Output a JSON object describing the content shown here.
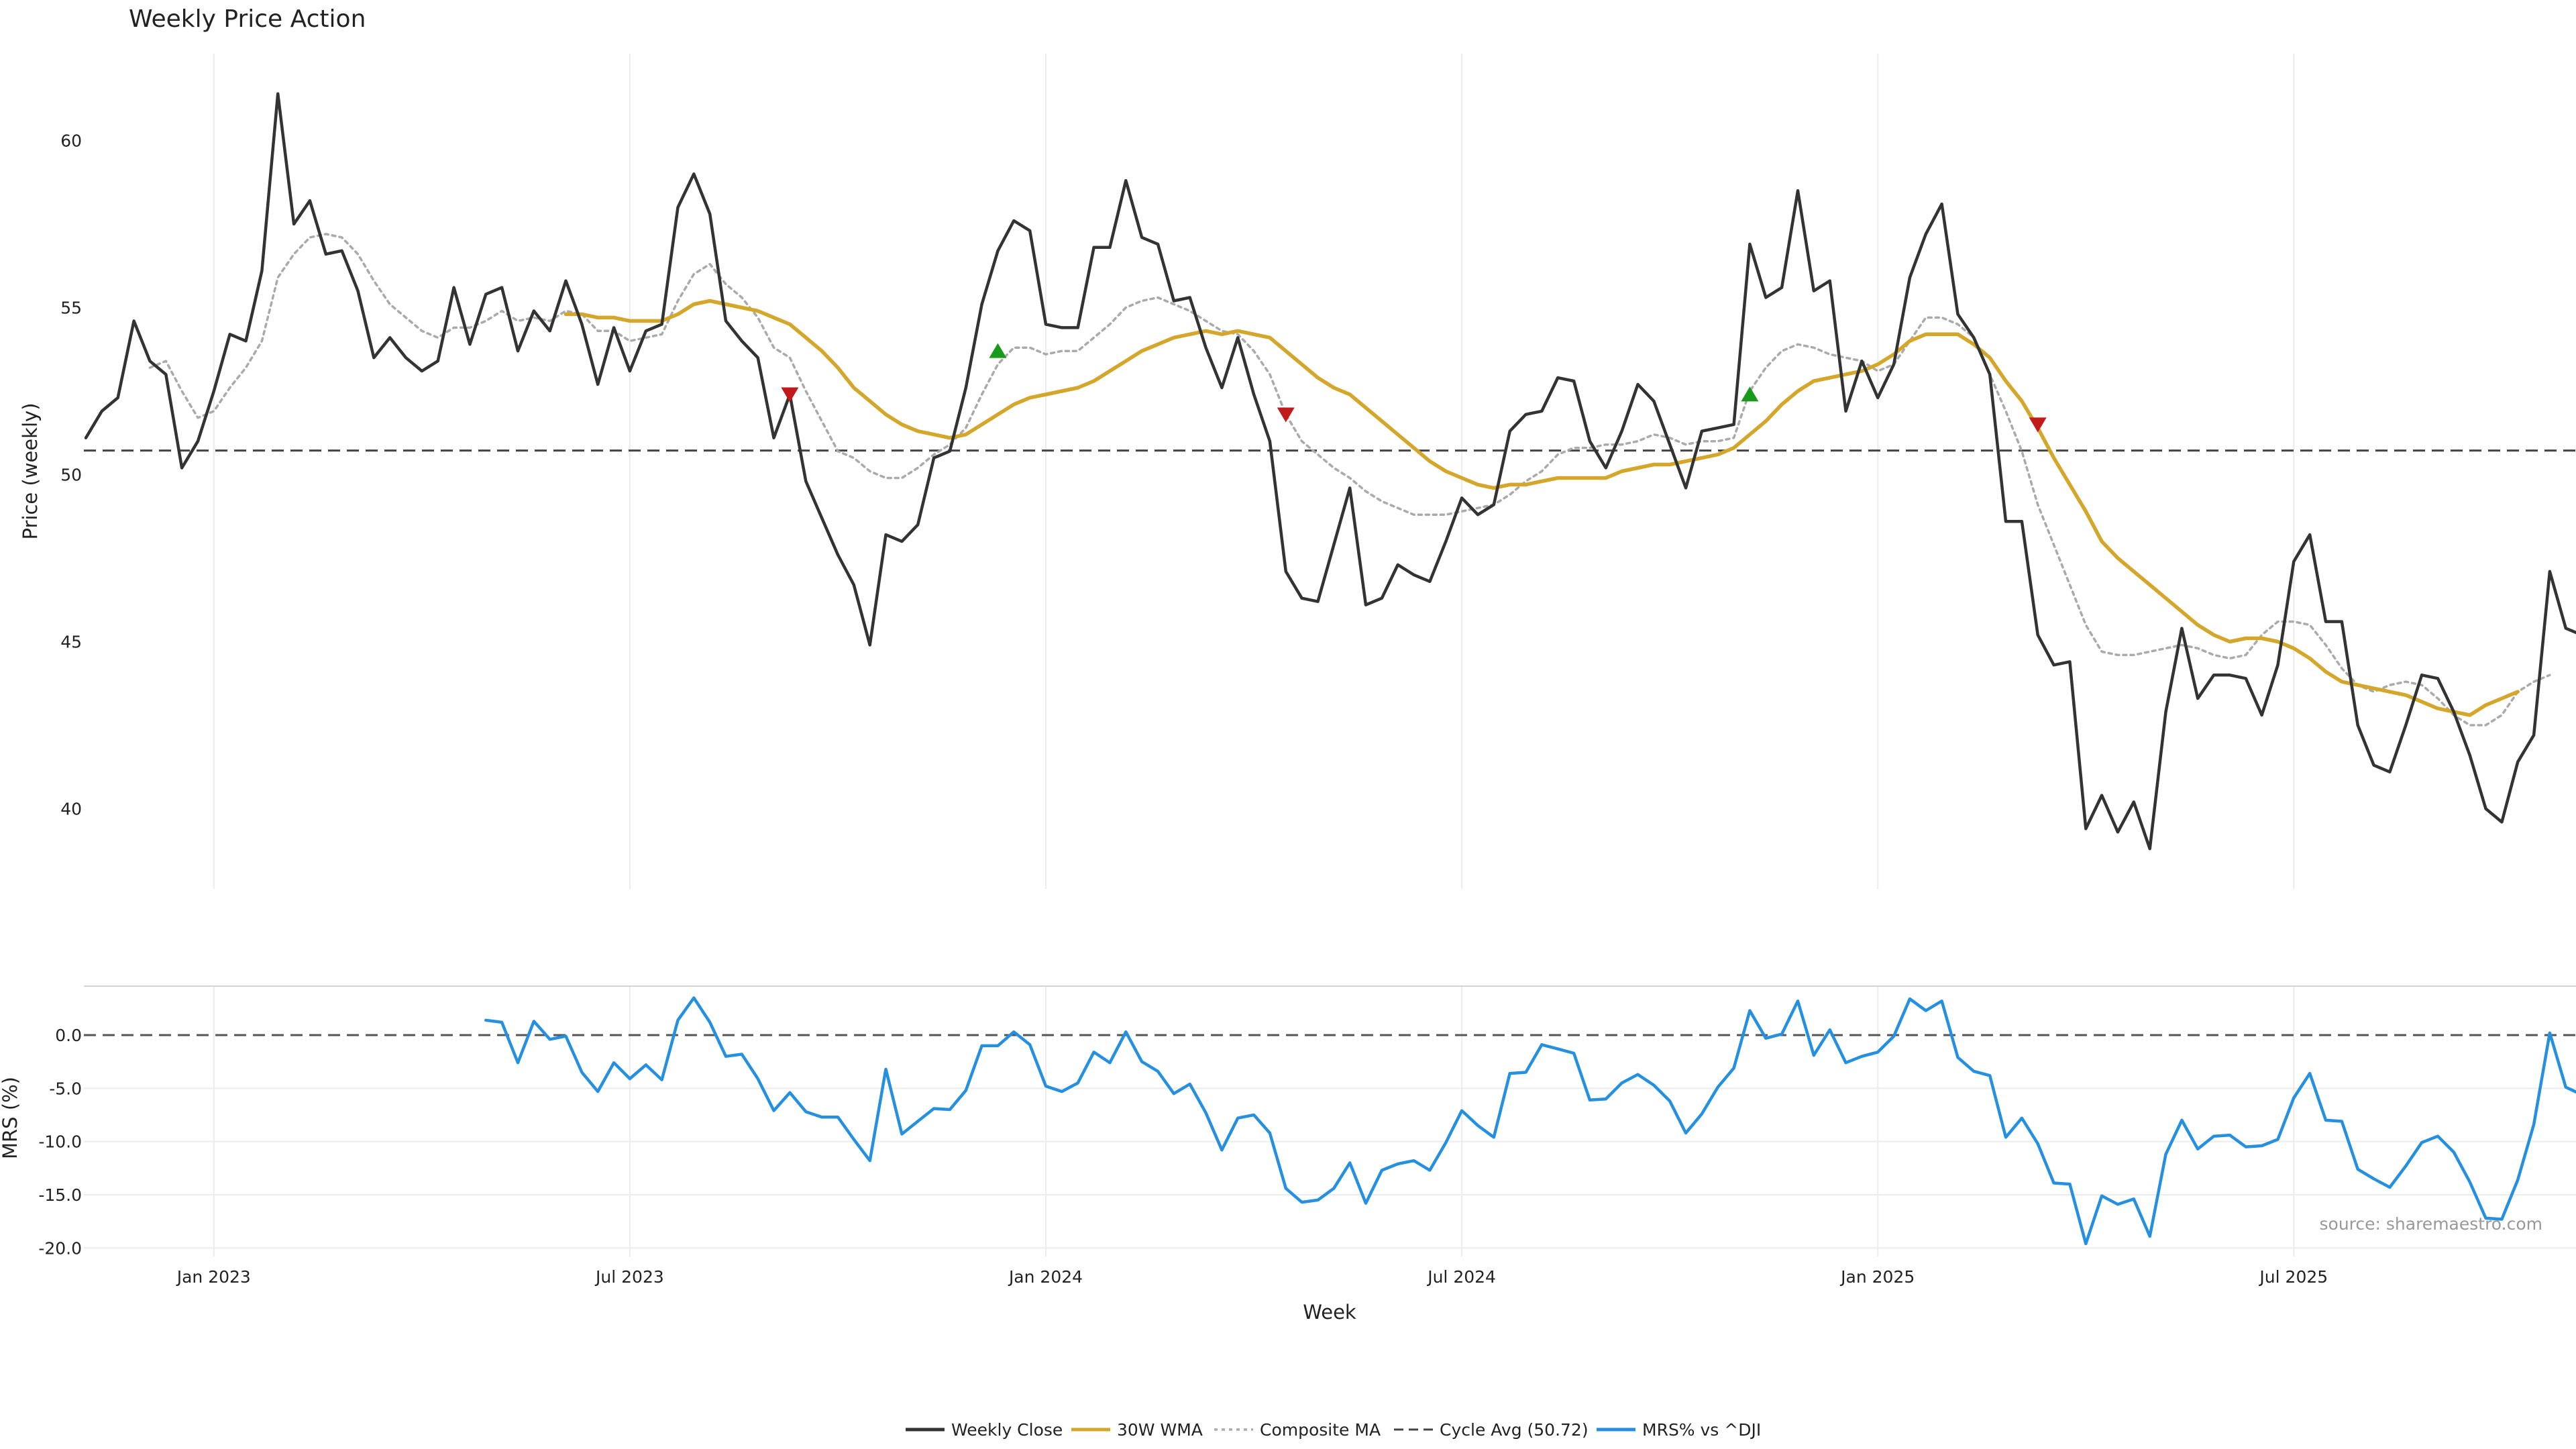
{
  "chart_data": {
    "type": "line",
    "title": "Weekly Price Action",
    "price_panel": {
      "ylabel": "Price (weekly)",
      "ylim": [
        37.6,
        62.6
      ],
      "yticks": [
        40,
        45,
        50,
        55,
        60
      ],
      "cycle_avg": 50.72,
      "series": [
        {
          "name": "Weekly Close",
          "color": "#333333",
          "style": "solid",
          "values": [
            51.1,
            51.9,
            52.3,
            54.6,
            53.4,
            53.0,
            50.2,
            51.0,
            52.5,
            54.2,
            54.0,
            56.1,
            61.4,
            57.5,
            58.2,
            56.6,
            56.7,
            55.5,
            53.5,
            54.1,
            53.5,
            53.1,
            53.4,
            55.6,
            53.9,
            55.4,
            55.6,
            53.7,
            54.9,
            54.3,
            55.8,
            54.5,
            52.7,
            54.4,
            53.1,
            54.3,
            54.5,
            58.0,
            59.0,
            57.8,
            54.6,
            54.0,
            53.5,
            51.1,
            52.4,
            49.8,
            48.7,
            47.6,
            46.7,
            44.9,
            48.2,
            48.0,
            48.5,
            50.5,
            50.7,
            52.6,
            55.1,
            56.7,
            57.6,
            57.3,
            54.5,
            54.4,
            54.4,
            56.8,
            56.8,
            58.8,
            57.1,
            56.9,
            55.2,
            55.3,
            53.8,
            52.6,
            54.1,
            52.4,
            51.0,
            47.1,
            46.3,
            46.2,
            47.9,
            49.6,
            46.1,
            46.3,
            47.3,
            47.0,
            46.8,
            48.0,
            49.3,
            48.8,
            49.1,
            51.3,
            51.8,
            51.9,
            52.9,
            52.8,
            51.0,
            50.2,
            51.3,
            52.7,
            52.2,
            50.9,
            49.6,
            51.3,
            51.4,
            51.5,
            56.9,
            55.3,
            55.6,
            58.5,
            55.5,
            55.8,
            51.9,
            53.4,
            52.3,
            53.3,
            55.9,
            57.2,
            58.1,
            54.8,
            54.1,
            53.0,
            48.6,
            48.6,
            45.2,
            44.3,
            44.4,
            39.4,
            40.4,
            39.3,
            40.2,
            38.8,
            42.9,
            45.4,
            43.3,
            44.0,
            44.0,
            43.9,
            42.8,
            44.3,
            47.4,
            48.2,
            45.6,
            45.6,
            42.5,
            41.3,
            41.1,
            42.5,
            44.0,
            43.9,
            42.9,
            41.6,
            40.0,
            39.6,
            41.4,
            42.2,
            47.1,
            45.4,
            45.2
          ]
        },
        {
          "name": "30W WMA",
          "color": "#d4a62a",
          "style": "solid",
          "values": [
            null,
            null,
            null,
            null,
            null,
            null,
            null,
            null,
            null,
            null,
            null,
            null,
            null,
            null,
            null,
            null,
            null,
            null,
            null,
            null,
            null,
            null,
            null,
            null,
            null,
            null,
            null,
            null,
            null,
            null,
            54.8,
            54.8,
            54.7,
            54.7,
            54.6,
            54.6,
            54.6,
            54.8,
            55.1,
            55.2,
            55.1,
            55.0,
            54.9,
            54.7,
            54.5,
            54.1,
            53.7,
            53.2,
            52.6,
            52.2,
            51.8,
            51.5,
            51.3,
            51.2,
            51.1,
            51.2,
            51.5,
            51.8,
            52.1,
            52.3,
            52.4,
            52.5,
            52.6,
            52.8,
            53.1,
            53.4,
            53.7,
            53.9,
            54.1,
            54.2,
            54.3,
            54.2,
            54.3,
            54.2,
            54.1,
            53.7,
            53.3,
            52.9,
            52.6,
            52.4,
            52.0,
            51.6,
            51.2,
            50.8,
            50.4,
            50.1,
            49.9,
            49.7,
            49.6,
            49.7,
            49.7,
            49.8,
            49.9,
            49.9,
            49.9,
            49.9,
            50.1,
            50.2,
            50.3,
            50.3,
            50.4,
            50.5,
            50.6,
            50.8,
            51.2,
            51.6,
            52.1,
            52.5,
            52.8,
            52.9,
            53.0,
            53.1,
            53.3,
            53.6,
            54.0,
            54.2,
            54.2,
            54.2,
            53.9,
            53.5,
            52.8,
            52.2,
            51.4,
            50.5,
            49.7,
            48.9,
            48.0,
            47.5,
            47.1,
            46.7,
            46.3,
            45.9,
            45.5,
            45.2,
            45.0,
            45.1,
            45.1,
            45.0,
            44.8,
            44.5,
            44.1,
            43.8,
            43.7,
            43.6,
            43.5,
            43.4,
            43.2,
            43.0,
            42.9,
            42.8,
            43.1,
            43.3,
            43.5
          ]
        },
        {
          "name": "Composite MA",
          "color": "#aaaaaa",
          "style": "dotted",
          "values": [
            null,
            null,
            null,
            null,
            53.2,
            53.4,
            52.5,
            51.7,
            51.9,
            52.6,
            53.2,
            54.0,
            55.9,
            56.6,
            57.1,
            57.2,
            57.1,
            56.6,
            55.8,
            55.1,
            54.7,
            54.3,
            54.1,
            54.4,
            54.4,
            54.6,
            54.9,
            54.6,
            54.7,
            54.6,
            54.9,
            54.8,
            54.3,
            54.3,
            54.0,
            54.1,
            54.2,
            55.2,
            56.0,
            56.3,
            55.7,
            55.3,
            54.7,
            53.8,
            53.5,
            52.5,
            51.6,
            50.7,
            50.5,
            50.1,
            49.9,
            49.9,
            50.2,
            50.6,
            50.9,
            51.4,
            52.4,
            53.3,
            53.8,
            53.8,
            53.6,
            53.7,
            53.7,
            54.1,
            54.5,
            55.0,
            55.2,
            55.3,
            55.1,
            54.9,
            54.6,
            54.3,
            54.2,
            53.7,
            53.0,
            51.8,
            51.0,
            50.6,
            50.2,
            49.9,
            49.5,
            49.2,
            49.0,
            48.8,
            48.8,
            48.8,
            48.9,
            49.0,
            49.1,
            49.4,
            49.8,
            50.1,
            50.6,
            50.8,
            50.8,
            50.9,
            50.9,
            51.0,
            51.2,
            51.1,
            50.9,
            51.0,
            51.0,
            51.1,
            52.5,
            53.2,
            53.7,
            53.9,
            53.8,
            53.6,
            53.5,
            53.4,
            53.1,
            53.3,
            54.0,
            54.7,
            54.7,
            54.5,
            54.1,
            53.0,
            51.9,
            50.7,
            49.1,
            47.9,
            46.7,
            45.5,
            44.7,
            44.6,
            44.6,
            44.7,
            44.8,
            44.9,
            44.8,
            44.6,
            44.5,
            44.6,
            45.2,
            45.6,
            45.6,
            45.5,
            44.9,
            44.2,
            43.7,
            43.5,
            43.7,
            43.8,
            43.7,
            43.3,
            42.8,
            42.5,
            42.5,
            42.8,
            43.5,
            43.8,
            44.0
          ]
        }
      ],
      "markers": [
        {
          "label": "sell",
          "x_index": 44,
          "value": 52.4
        },
        {
          "label": "buy",
          "x_index": 57,
          "value": 53.7
        },
        {
          "label": "sell",
          "x_index": 75,
          "value": 51.8
        },
        {
          "label": "buy",
          "x_index": 104,
          "value": 52.4
        },
        {
          "label": "sell",
          "x_index": 122,
          "value": 51.5
        }
      ]
    },
    "mrs_panel": {
      "ylabel": "MRS (%)",
      "ylim": [
        -20.8,
        4.6
      ],
      "yticks": [
        0.0,
        -5.0,
        -10.0,
        -15.0,
        -20.0
      ],
      "series": [
        {
          "name": "MRS% vs ^DJI",
          "color": "#2590e0",
          "style": "solid",
          "values": [
            null,
            null,
            null,
            null,
            null,
            null,
            null,
            null,
            null,
            null,
            null,
            null,
            null,
            null,
            null,
            null,
            null,
            null,
            null,
            null,
            null,
            null,
            null,
            null,
            null,
            1.4,
            1.2,
            -2.6,
            1.3,
            -0.4,
            -0.1,
            -3.5,
            -5.3,
            -2.6,
            -4.1,
            -2.8,
            -4.2,
            1.4,
            3.5,
            1.2,
            -2.0,
            -1.8,
            -4.1,
            -7.1,
            -5.4,
            -7.2,
            -7.7,
            -7.7,
            -9.8,
            -11.8,
            -3.2,
            -9.3,
            -8.1,
            -6.9,
            -7.0,
            -5.2,
            -1.0,
            -1.0,
            0.3,
            -0.9,
            -4.8,
            -5.3,
            -4.5,
            -1.6,
            -2.6,
            0.3,
            -2.5,
            -3.4,
            -5.5,
            -4.6,
            -7.3,
            -10.8,
            -7.8,
            -7.5,
            -9.2,
            -14.4,
            -15.7,
            -15.5,
            -14.4,
            -12.0,
            -15.8,
            -12.7,
            -12.1,
            -11.8,
            -12.7,
            -10.1,
            -7.1,
            -8.5,
            -9.6,
            -3.6,
            -3.5,
            -0.9,
            -1.3,
            -1.7,
            -6.1,
            -6.0,
            -4.5,
            -3.7,
            -4.7,
            -6.2,
            -9.2,
            -7.4,
            -4.9,
            -3.1,
            2.3,
            -0.3,
            0.1,
            3.2,
            -1.9,
            0.5,
            -2.6,
            -2.0,
            -1.6,
            -0.1,
            3.4,
            2.3,
            3.2,
            -2.1,
            -3.4,
            -3.8,
            -9.6,
            -7.8,
            -10.2,
            -13.9,
            -14.0,
            -19.6,
            -15.1,
            -15.9,
            -15.4,
            -18.9,
            -11.2,
            -8.0,
            -10.7,
            -9.5,
            -9.4,
            -10.5,
            -10.4,
            -9.8,
            -5.9,
            -3.6,
            -8.0,
            -8.1,
            -12.6,
            -13.5,
            -14.3,
            -12.3,
            -10.1,
            -9.5,
            -11.0,
            -13.8,
            -17.2,
            -17.3,
            -13.6,
            -8.4,
            0.2,
            -4.9,
            -5.6
          ]
        }
      ],
      "reference_line": 0.0
    },
    "x_axis": {
      "xlabel": "Week",
      "start": "2022-11-07",
      "interval": "weekly",
      "tick_labels": [
        "Jan 2023",
        "Jul 2023",
        "Jan 2024",
        "Jul 2024",
        "Jan 2025",
        "Jul 2025"
      ],
      "tick_indices": [
        8,
        34,
        60,
        86,
        112,
        138
      ]
    },
    "legend": {
      "placement": "bottom-center",
      "entries": [
        "Weekly Close",
        "30W WMA",
        "Composite MA",
        "Cycle Avg (50.72)",
        "MRS% vs ^DJI"
      ]
    },
    "source": "source: sharemaestro.com",
    "grid": true
  }
}
